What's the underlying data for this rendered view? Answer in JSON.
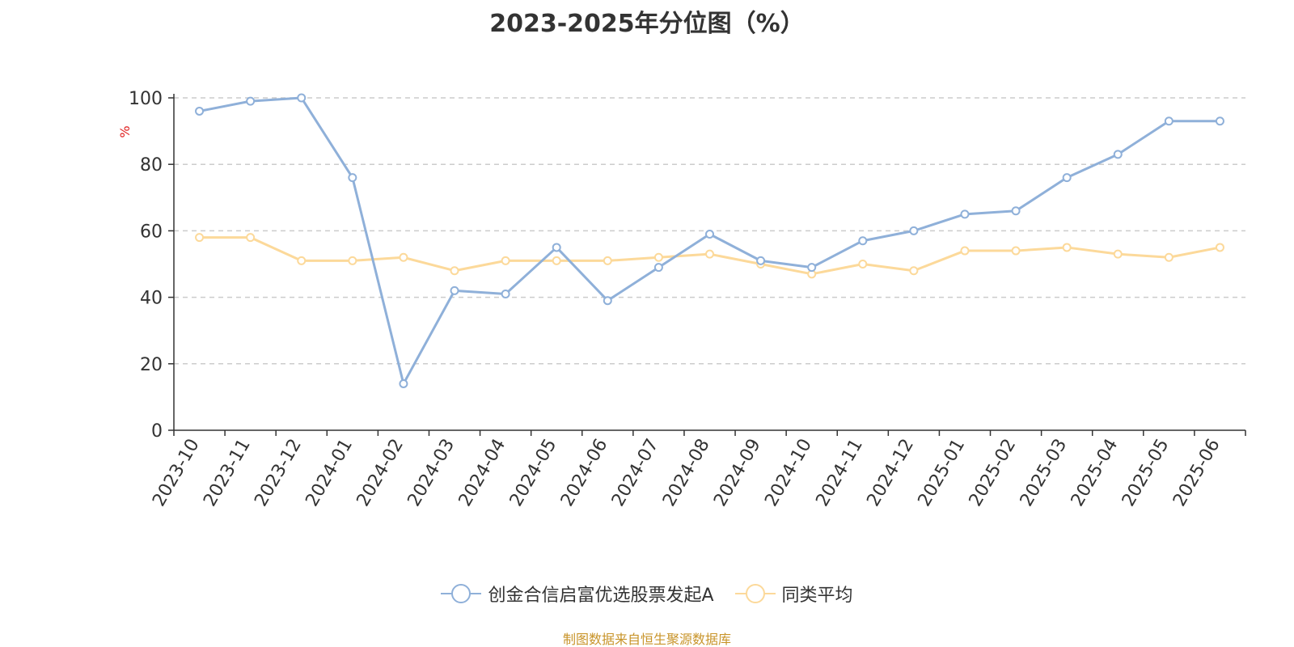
{
  "chart_data": {
    "type": "line",
    "title": "2023-2025年分位图（%）",
    "ylabel": "%",
    "ylim": [
      0,
      100
    ],
    "yticks": [
      0,
      20,
      40,
      60,
      80,
      100
    ],
    "grid": true,
    "legend_position": "bottom-center",
    "categories": [
      "2023-10",
      "2023-11",
      "2023-12",
      "2024-01",
      "2024-02",
      "2024-03",
      "2024-04",
      "2024-05",
      "2024-06",
      "2024-07",
      "2024-08",
      "2024-09",
      "2024-10",
      "2024-11",
      "2024-12",
      "2025-01",
      "2025-02",
      "2025-03",
      "2025-04",
      "2025-05",
      "2025-06"
    ],
    "series": [
      {
        "name": "创金合信启富优选股票发起A",
        "color": "#8fb0d9",
        "values": [
          96,
          99,
          100,
          76,
          14,
          42,
          41,
          55,
          39,
          49,
          59,
          51,
          49,
          57,
          60,
          65,
          66,
          76,
          83,
          93,
          93
        ]
      },
      {
        "name": "同类平均",
        "color": "#fcd99a",
        "values": [
          58,
          58,
          51,
          51,
          52,
          48,
          51,
          51,
          51,
          52,
          53,
          50,
          47,
          50,
          48,
          54,
          54,
          55,
          53,
          52,
          55
        ]
      }
    ],
    "source": "制图数据来自恒生聚源数据库"
  }
}
